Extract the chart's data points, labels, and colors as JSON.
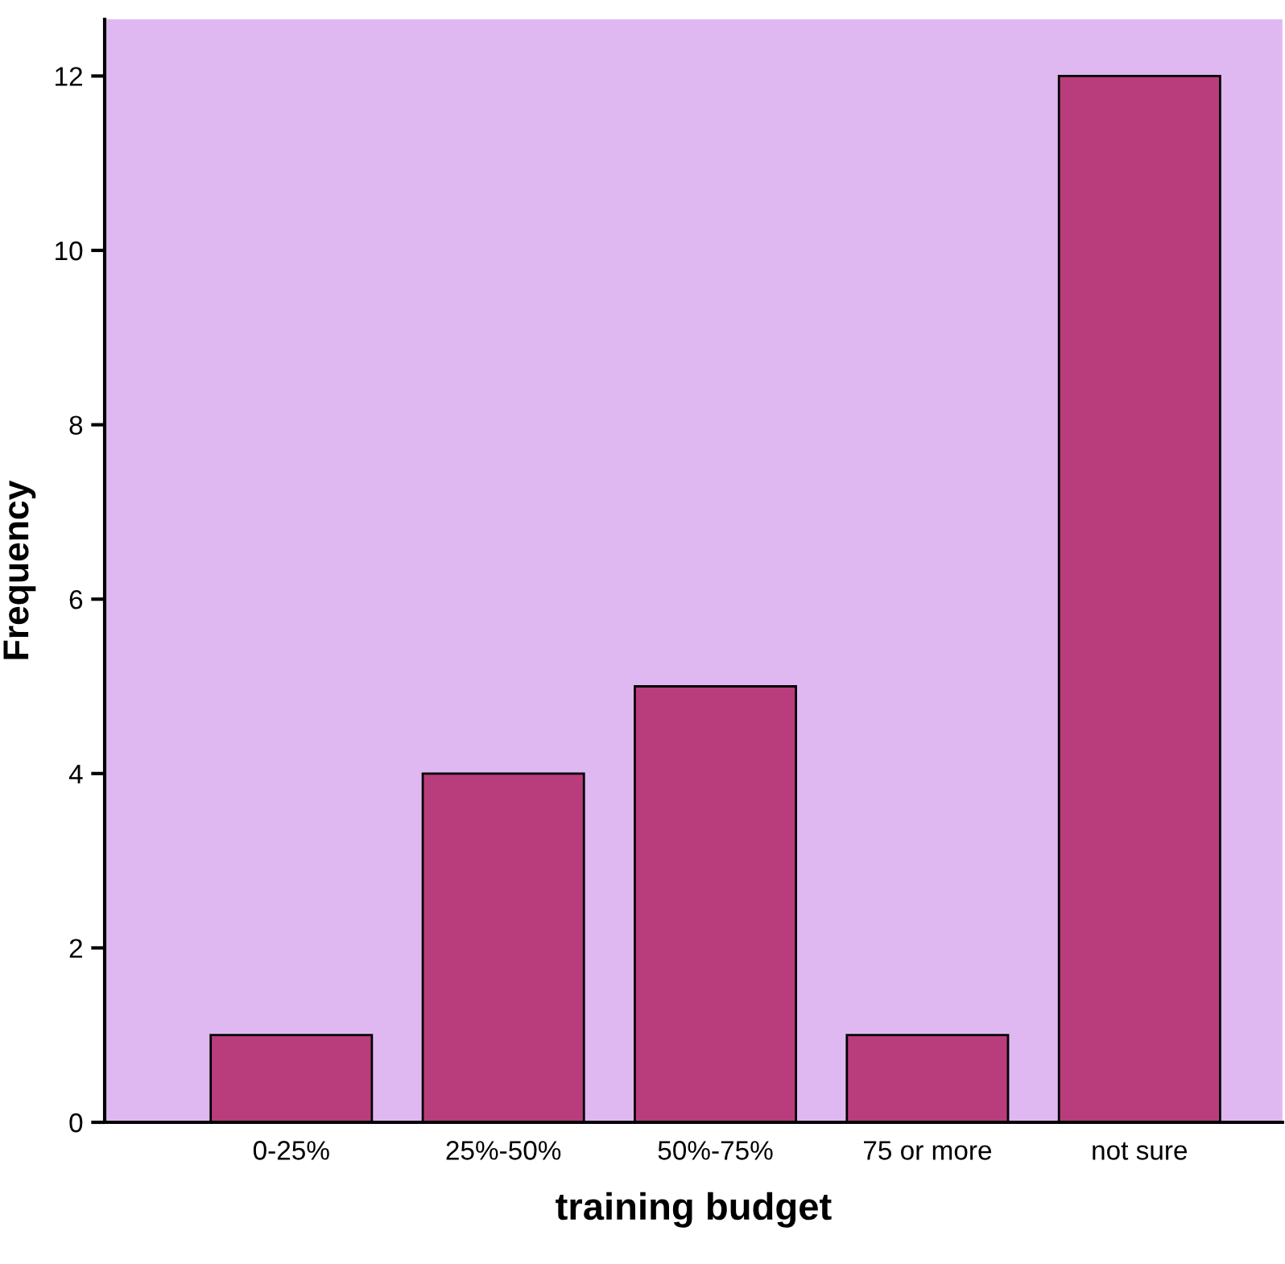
{
  "chart_data": {
    "type": "bar",
    "xlabel": "training budget",
    "ylabel": "Frequency",
    "categories": [
      "0-25%",
      "25%-50%",
      "50%-75%",
      "75 or more",
      "not sure"
    ],
    "values": [
      1,
      4,
      5,
      1,
      12
    ],
    "color": "#b93d7c",
    "ylim": [
      0,
      12.65
    ],
    "yticks": [
      0,
      2,
      4,
      6,
      8,
      10,
      12
    ],
    "grid": false,
    "legend": false
  }
}
